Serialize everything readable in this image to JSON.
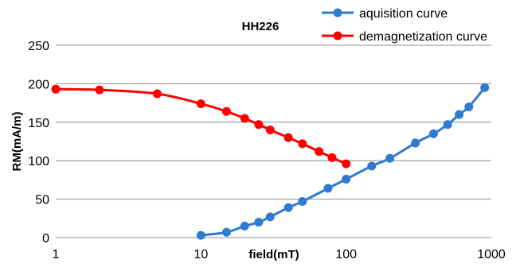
{
  "chart_data": {
    "type": "line",
    "title": "HH226",
    "xlabel": "field(mT)",
    "ylabel": "RM(mA/m)",
    "x_scale": "log",
    "xlim": [
      1,
      1000
    ],
    "ylim": [
      0,
      250
    ],
    "x_ticks": [
      1,
      10,
      100,
      1000
    ],
    "y_ticks": [
      0,
      50,
      100,
      150,
      200,
      250
    ],
    "grid": "horizontal",
    "legend_position": "top-right",
    "series": [
      {
        "name": "aquisition curve",
        "color": "#2e7bd0",
        "x": [
          10,
          15,
          20,
          25,
          30,
          40,
          50,
          75,
          100,
          150,
          200,
          300,
          400,
          500,
          600,
          700,
          900
        ],
        "y": [
          3,
          7,
          15,
          20,
          27,
          39,
          47,
          64,
          76,
          93,
          103,
          123,
          135,
          147,
          160,
          170,
          195
        ]
      },
      {
        "name": "demagnetization curve",
        "color": "#ff0000",
        "x": [
          1,
          2,
          5,
          10,
          15,
          20,
          25,
          30,
          40,
          50,
          65,
          80,
          100
        ],
        "y": [
          193,
          192,
          187,
          174,
          164,
          155,
          147,
          140,
          130,
          122,
          112,
          104,
          96
        ]
      }
    ]
  }
}
